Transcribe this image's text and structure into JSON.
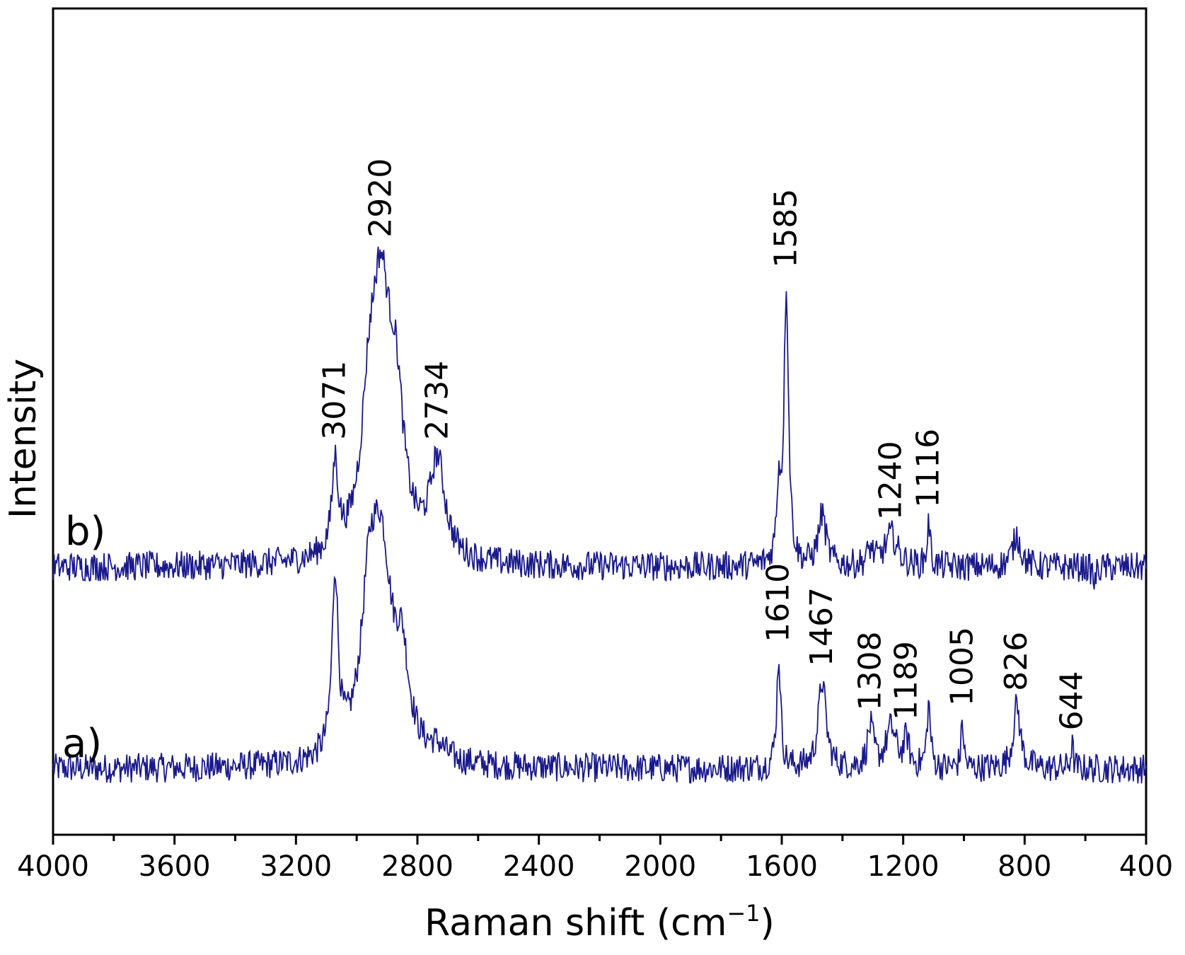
{
  "colors": {
    "line": "#1a1a8c",
    "axis": "#000000"
  },
  "chart_data": {
    "type": "line",
    "xlabel": "Raman shift (cm",
    "xlabel_sup": "−1",
    "xlabel_end": ")",
    "ylabel": "Intensity",
    "xlim": [
      4000,
      400
    ],
    "x_reversed": true,
    "xticks": [
      4000,
      3600,
      3200,
      2800,
      2400,
      2000,
      1600,
      1200,
      800,
      400
    ],
    "yticks": "none",
    "grid": false,
    "series": [
      {
        "name": "a)",
        "offset": 0.0,
        "baseline": 0.05,
        "peaks": [
          {
            "x": 3071,
            "h": 0.45,
            "w": 12
          },
          {
            "x": 2960,
            "h": 0.28,
            "w": 30
          },
          {
            "x": 2920,
            "h": 0.52,
            "w": 45
          },
          {
            "x": 2850,
            "h": 0.2,
            "w": 25
          },
          {
            "x": 2734,
            "h": 0.03,
            "w": 30
          },
          {
            "x": 1610,
            "h": 0.28,
            "w": 8
          },
          {
            "x": 1467,
            "h": 0.22,
            "w": 15
          },
          {
            "x": 1308,
            "h": 0.1,
            "w": 12
          },
          {
            "x": 1240,
            "h": 0.1,
            "w": 20
          },
          {
            "x": 1189,
            "h": 0.07,
            "w": 10
          },
          {
            "x": 1116,
            "h": 0.16,
            "w": 7
          },
          {
            "x": 1005,
            "h": 0.12,
            "w": 5
          },
          {
            "x": 826,
            "h": 0.16,
            "w": 14
          },
          {
            "x": 644,
            "h": 0.06,
            "w": 5
          }
        ],
        "labels": [
          {
            "x": 1610,
            "text": "1610"
          },
          {
            "x": 1467,
            "text": "1467"
          },
          {
            "x": 1308,
            "text": "1308"
          },
          {
            "x": 1189,
            "text": "1189"
          },
          {
            "x": 1005,
            "text": "1005"
          },
          {
            "x": 826,
            "text": "826"
          },
          {
            "x": 644,
            "text": "644"
          }
        ]
      },
      {
        "name": "b)",
        "offset": 0.28,
        "baseline": 0.05,
        "peaks": [
          {
            "x": 3071,
            "h": 0.22,
            "w": 12
          },
          {
            "x": 2960,
            "h": 0.25,
            "w": 30
          },
          {
            "x": 2920,
            "h": 0.62,
            "w": 40
          },
          {
            "x": 2870,
            "h": 0.3,
            "w": 30
          },
          {
            "x": 2734,
            "h": 0.24,
            "w": 30
          },
          {
            "x": 1610,
            "h": 0.18,
            "w": 8
          },
          {
            "x": 1585,
            "h": 0.7,
            "w": 9
          },
          {
            "x": 1467,
            "h": 0.13,
            "w": 15
          },
          {
            "x": 1308,
            "h": 0.04,
            "w": 12
          },
          {
            "x": 1240,
            "h": 0.08,
            "w": 25
          },
          {
            "x": 1116,
            "h": 0.11,
            "w": 6
          },
          {
            "x": 826,
            "h": 0.08,
            "w": 16
          },
          {
            "x": 570,
            "h": -0.04,
            "w": 6
          }
        ],
        "labels": [
          {
            "x": 3071,
            "text": "3071"
          },
          {
            "x": 2920,
            "text": "2920"
          },
          {
            "x": 2734,
            "text": "2734"
          },
          {
            "x": 1585,
            "text": "1585"
          },
          {
            "x": 1240,
            "text": "1240"
          },
          {
            "x": 1116,
            "text": "1116"
          }
        ]
      }
    ]
  }
}
